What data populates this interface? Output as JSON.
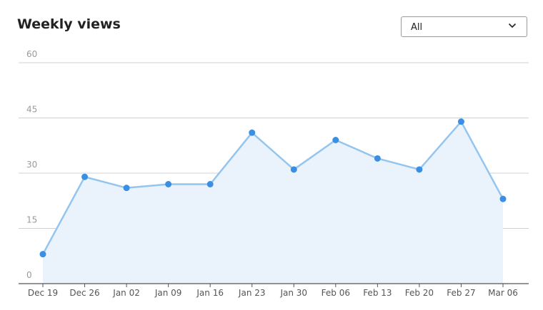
{
  "header": {
    "title": "Weekly views"
  },
  "filter": {
    "selected": "All",
    "icon": "chevron-down-icon"
  },
  "colors": {
    "line": "#94c5ef",
    "point": "#3b8fe3",
    "area": "#eaf3fb",
    "grid": "#d0d0d0",
    "axis": "#555555"
  },
  "chart_data": {
    "type": "area",
    "categories": [
      "Dec 19",
      "Dec 26",
      "Jan 02",
      "Jan 09",
      "Jan 16",
      "Jan 23",
      "Jan 30",
      "Feb 06",
      "Feb 13",
      "Feb 20",
      "Feb 27",
      "Mar 06"
    ],
    "values": [
      8,
      29,
      26,
      27,
      27,
      41,
      31,
      39,
      34,
      31,
      44,
      23
    ],
    "title": "Weekly views",
    "ylim": [
      0,
      60
    ],
    "yticks": [
      0,
      15,
      30,
      45,
      60
    ],
    "grid": true,
    "legend": false
  }
}
